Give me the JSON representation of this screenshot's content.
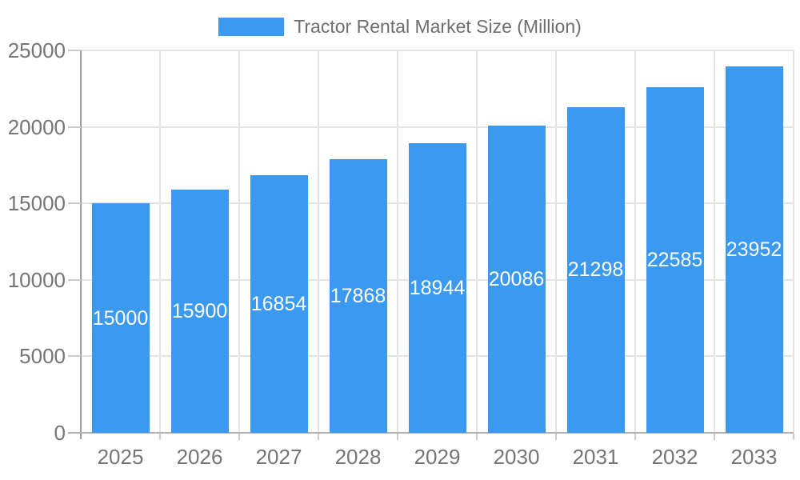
{
  "chart_data": {
    "type": "bar",
    "title": "Tractor Rental Market Size (Million)",
    "legend": {
      "label": "Tractor Rental Market Size (Million)",
      "position": "top-center"
    },
    "categories": [
      "2025",
      "2026",
      "2027",
      "2028",
      "2029",
      "2030",
      "2031",
      "2032",
      "2033"
    ],
    "series": [
      {
        "name": "Tractor Rental Market Size (Million)",
        "values": [
          15000,
          15900,
          16854,
          17868,
          18944,
          20086,
          21298,
          22585,
          23952
        ]
      }
    ],
    "xlabel": "",
    "ylabel": "",
    "ylim": [
      0,
      25000
    ],
    "yticks": [
      0,
      5000,
      10000,
      15000,
      20000,
      25000
    ],
    "grid": true,
    "value_labels": "inside-center",
    "legend_position": "top-center",
    "colors": {
      "bar": "#3B99F0",
      "value_label": "#FFFFFF",
      "axis_text": "#757575",
      "legend_text": "#6E6E6E",
      "gridline": "#E3E3E3",
      "axis_line_y": "#9E9E9E",
      "axis_line_x": "#B0B0B0",
      "tick": "#CCCCCC",
      "background": "#FFFFFF"
    }
  }
}
